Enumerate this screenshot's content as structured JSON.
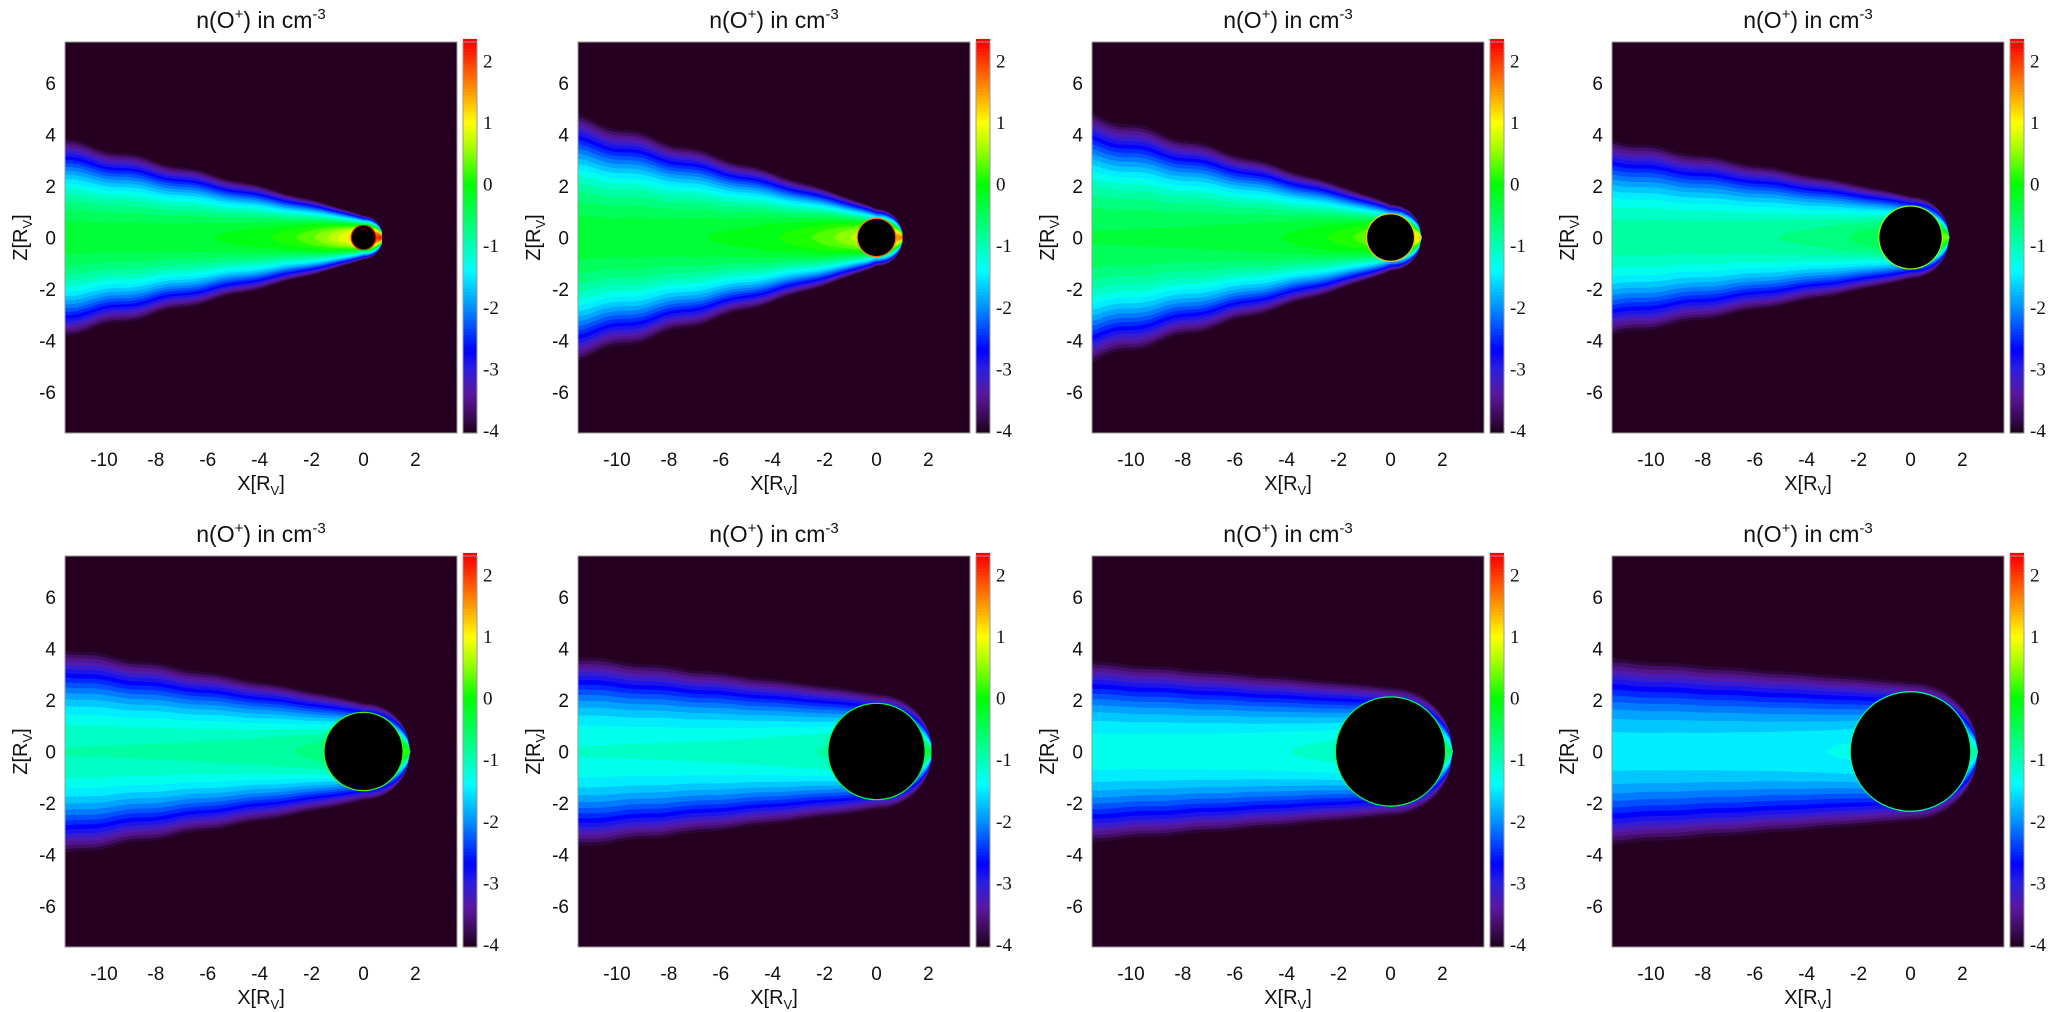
{
  "chart_data": {
    "type": "heatmap",
    "layout": "2 rows x 4 columns",
    "title": {
      "base": "n(O",
      "sup1": "+",
      "mid": ") in cm",
      "sup2": "-3"
    },
    "xlabel": {
      "base": "X[R",
      "sub": "V",
      "end": "]"
    },
    "ylabel": {
      "base": "Z[R",
      "sub": "V",
      "end": "]"
    },
    "xlim": [
      -11.5,
      3.6
    ],
    "ylim": [
      -7.6,
      7.6
    ],
    "xticks": [
      "-10",
      "-8",
      "-6",
      "-4",
      "-2",
      "0",
      "2"
    ],
    "yticks": [
      "-6",
      "-4",
      "-2",
      "0",
      "2",
      "4",
      "6"
    ],
    "colorbar": {
      "clim": [
        -4.05,
        2.3
      ],
      "ticks": [
        "-4",
        "-3",
        "-2",
        "-1",
        "0",
        "1",
        "2"
      ],
      "colormap": [
        [
          -4.05,
          "#1a0018"
        ],
        [
          -3.8,
          "#3a0a52"
        ],
        [
          -3.4,
          "#5a18a0"
        ],
        [
          -3.0,
          "#2a1ee0"
        ],
        [
          -2.7,
          "#0000ff"
        ],
        [
          -2.0,
          "#0090ff"
        ],
        [
          -1.4,
          "#00ffff"
        ],
        [
          -0.8,
          "#00ff90"
        ],
        [
          0.0,
          "#00ff00"
        ],
        [
          0.6,
          "#a8ff00"
        ],
        [
          1.0,
          "#ffff00"
        ],
        [
          1.5,
          "#ff9900"
        ],
        [
          2.3,
          "#ff0000"
        ]
      ]
    },
    "background_color": "#250020",
    "obstacle_color": "#000000",
    "panels": [
      {
        "obstacle_radius": 0.45,
        "tail_halfwidth": 3.8,
        "tail_value": -0.3,
        "peak_value": 2.3,
        "decay": 2.0
      },
      {
        "obstacle_radius": 0.72,
        "tail_halfwidth": 4.7,
        "tail_value": -0.3,
        "peak_value": 1.7,
        "decay": 2.5
      },
      {
        "obstacle_radius": 0.9,
        "tail_halfwidth": 4.8,
        "tail_value": -0.4,
        "peak_value": 1.3,
        "decay": 2.5
      },
      {
        "obstacle_radius": 1.2,
        "tail_halfwidth": 3.8,
        "tail_value": -0.9,
        "peak_value": 0.5,
        "decay": 2.5
      },
      {
        "obstacle_radius": 1.5,
        "tail_halfwidth": 4.0,
        "tail_value": -1.0,
        "peak_value": 0.2,
        "decay": 2.5
      },
      {
        "obstacle_radius": 1.85,
        "tail_halfwidth": 3.7,
        "tail_value": -1.2,
        "peak_value": -0.3,
        "decay": 3.0
      },
      {
        "obstacle_radius": 2.1,
        "tail_halfwidth": 3.5,
        "tail_value": -1.3,
        "peak_value": -0.5,
        "decay": 3.0
      },
      {
        "obstacle_radius": 2.3,
        "tail_halfwidth": 3.6,
        "tail_value": -1.5,
        "peak_value": -0.8,
        "decay": 3.0
      }
    ]
  }
}
